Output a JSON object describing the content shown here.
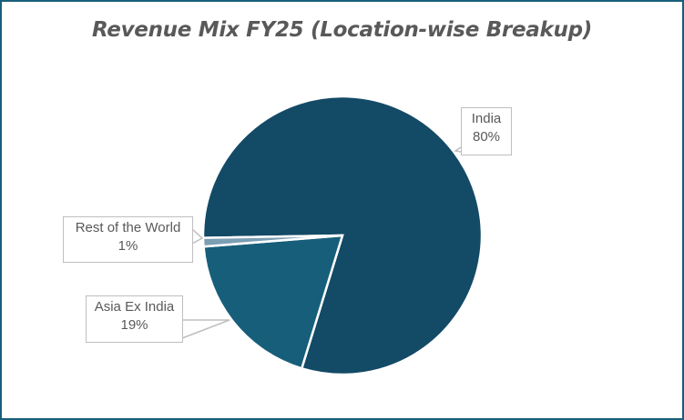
{
  "chart_data": {
    "type": "pie",
    "title": "Revenue Mix FY25 (Location-wise Breakup)",
    "categories": [
      "India",
      "Asia Ex India",
      "Rest of the World"
    ],
    "values": [
      80,
      19,
      1
    ],
    "value_format": "percent",
    "colors": [
      "#134A66",
      "#175E7A",
      "#7B9EB3"
    ],
    "labels": [
      {
        "name": "India",
        "value": "80%"
      },
      {
        "name": "Asia Ex India",
        "value": "19%"
      },
      {
        "name": "Rest of the World",
        "value": "1%"
      }
    ],
    "legend": "none",
    "data_labels": "callout"
  },
  "frame": {
    "border_color": "#175E7A"
  }
}
